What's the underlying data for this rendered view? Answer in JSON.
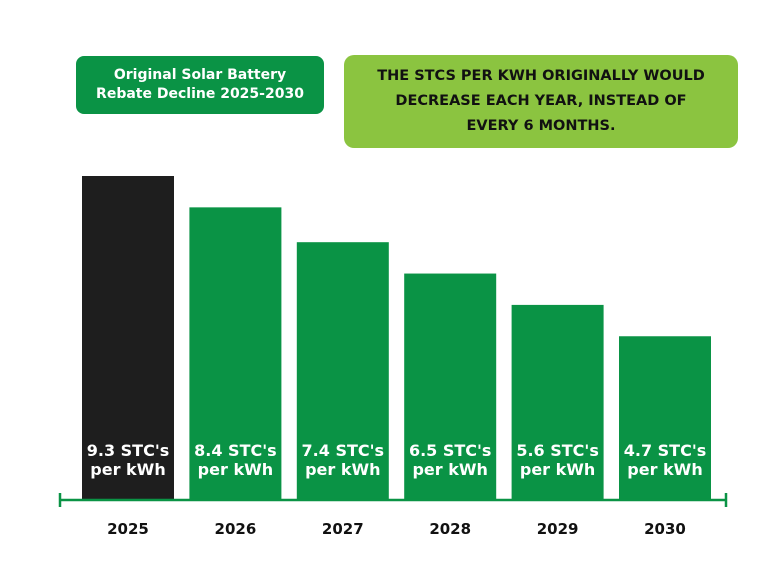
{
  "title": {
    "line1": "Original Solar Battery",
    "line2": "Rebate Decline 2025-2030"
  },
  "note": {
    "text": "THE STCS PER KWH ORIGINALLY WOULD DECREASE EACH YEAR, INSTEAD OF EVERY 6 MONTHS."
  },
  "colors": {
    "title_bg": "#0a9345",
    "note_bg": "#8bc440",
    "bar_first": "#1e1e1e",
    "bar": "#0a9345",
    "axis": "#0a9345"
  },
  "chart_data": {
    "type": "bar",
    "title": "Original Solar Battery Rebate Decline 2025-2030",
    "xlabel": "",
    "ylabel": "",
    "categories": [
      "2025",
      "2026",
      "2027",
      "2028",
      "2029",
      "2030"
    ],
    "values": [
      9.3,
      8.4,
      7.4,
      6.5,
      5.6,
      4.7
    ],
    "bar_labels": [
      [
        "9.3 STC's",
        "per kWh"
      ],
      [
        "8.4 STC's",
        "per kWh"
      ],
      [
        "7.4 STC's",
        "per kWh"
      ],
      [
        "6.5 STC's",
        "per kWh"
      ],
      [
        "5.6 STC's",
        "per kWh"
      ],
      [
        "4.7 STC's",
        "per kWh"
      ]
    ],
    "ylim": [
      0,
      9.3
    ],
    "grid": false,
    "legend": "none"
  }
}
